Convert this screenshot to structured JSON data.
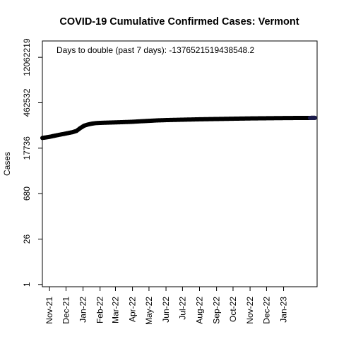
{
  "chart_data": {
    "type": "line",
    "title": "COVID-19 Cumulative Confirmed Cases: Vermont",
    "xlabel": "",
    "ylabel": "Cases",
    "y_scale": "log",
    "ylim": [
      0.85,
      39000000
    ],
    "xlim": [
      "2021-10-19",
      "2023-03-03"
    ],
    "grid": false,
    "legend": "none",
    "annotation": "Days to double (past 7 days): -1376521519438548.2",
    "y_ticks": [
      {
        "value": 1,
        "label": "1"
      },
      {
        "value": 26,
        "label": "26"
      },
      {
        "value": 680,
        "label": "680"
      },
      {
        "value": 17736,
        "label": "17736"
      },
      {
        "value": 462532,
        "label": "462532"
      },
      {
        "value": 12062219,
        "label": "12062219"
      }
    ],
    "x_ticks": [
      {
        "value": "2021-11-01",
        "label": "Nov-21"
      },
      {
        "value": "2021-12-01",
        "label": "Dec-21"
      },
      {
        "value": "2022-01-01",
        "label": "Jan-22"
      },
      {
        "value": "2022-02-01",
        "label": "Feb-22"
      },
      {
        "value": "2022-03-01",
        "label": "Mar-22"
      },
      {
        "value": "2022-04-01",
        "label": "Apr-22"
      },
      {
        "value": "2022-05-01",
        "label": "May-22"
      },
      {
        "value": "2022-06-01",
        "label": "Jun-22"
      },
      {
        "value": "2022-07-01",
        "label": "Jul-22"
      },
      {
        "value": "2022-08-01",
        "label": "Aug-22"
      },
      {
        "value": "2022-09-01",
        "label": "Sep-22"
      },
      {
        "value": "2022-10-01",
        "label": "Oct-22"
      },
      {
        "value": "2022-11-01",
        "label": "Nov-22"
      },
      {
        "value": "2022-12-01",
        "label": "Dec-22"
      },
      {
        "value": "2023-01-01",
        "label": "Jan-23"
      }
    ],
    "series": [
      {
        "color": "#000000",
        "end_color": "#1a1a4a",
        "points": [
          [
            "2021-10-19",
            37000
          ],
          [
            "2021-10-26",
            38500
          ],
          [
            "2021-11-01",
            40000
          ],
          [
            "2021-11-08",
            42500
          ],
          [
            "2021-11-15",
            45000
          ],
          [
            "2021-11-22",
            47500
          ],
          [
            "2021-11-29",
            50000
          ],
          [
            "2021-12-06",
            53000
          ],
          [
            "2021-12-13",
            56000
          ],
          [
            "2021-12-20",
            61000
          ],
          [
            "2021-12-27",
            75000
          ],
          [
            "2022-01-03",
            89000
          ],
          [
            "2022-01-10",
            97000
          ],
          [
            "2022-01-17",
            103000
          ],
          [
            "2022-01-24",
            107000
          ],
          [
            "2022-02-01",
            109000
          ],
          [
            "2022-02-15",
            111000
          ],
          [
            "2022-03-01",
            113000
          ],
          [
            "2022-03-15",
            115000
          ],
          [
            "2022-04-01",
            118000
          ],
          [
            "2022-04-15",
            122000
          ],
          [
            "2022-05-01",
            126000
          ],
          [
            "2022-05-15",
            130000
          ],
          [
            "2022-06-01",
            133000
          ],
          [
            "2022-07-01",
            137000
          ],
          [
            "2022-08-01",
            141000
          ],
          [
            "2022-09-01",
            144000
          ],
          [
            "2022-10-01",
            147000
          ],
          [
            "2022-11-01",
            150000
          ],
          [
            "2022-12-01",
            152000
          ],
          [
            "2023-01-01",
            154000
          ],
          [
            "2023-02-01",
            155500
          ],
          [
            "2023-02-27",
            156000
          ]
        ]
      }
    ]
  }
}
